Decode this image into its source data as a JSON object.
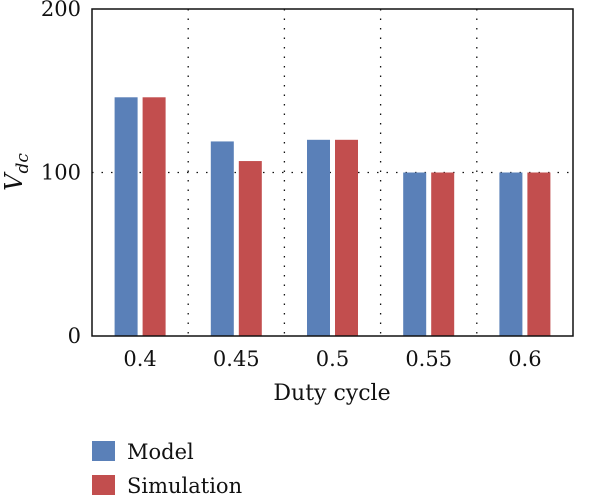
{
  "chart_data": {
    "type": "bar",
    "categories": [
      "0.4",
      "0.45",
      "0.5",
      "0.55",
      "0.6"
    ],
    "series": [
      {
        "name": "Model",
        "color": "#5A80B8",
        "values": [
          146,
          119,
          120,
          100,
          100
        ]
      },
      {
        "name": "Simulation",
        "color": "#C24E4E",
        "values": [
          146,
          107,
          120,
          100,
          100
        ]
      }
    ],
    "xlabel": "Duty cycle",
    "ylabel_main": "V",
    "ylabel_sub": "dc",
    "ylim": [
      0,
      200
    ],
    "yticks": [
      "0",
      "100",
      "200"
    ],
    "grid": "dotted",
    "legend_position": "bottom-left"
  }
}
